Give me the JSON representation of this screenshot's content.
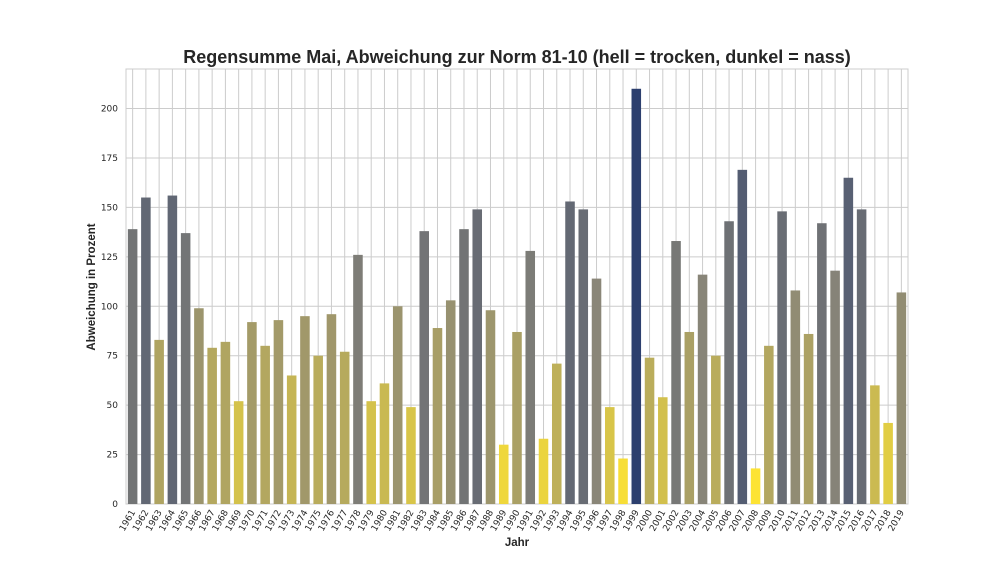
{
  "chart_data": {
    "type": "bar",
    "title": "Regensumme Mai, Abweichung zur Norm 81-10 (hell = trocken, dunkel = nass)",
    "xlabel": "Jahr",
    "ylabel": "Abweichung in Prozent",
    "ylim": [
      0,
      220
    ],
    "yticks": [
      0,
      25,
      50,
      75,
      100,
      125,
      150,
      175,
      200
    ],
    "grid": true,
    "color_scale": {
      "low": "#fde333",
      "mid": "#8a8678",
      "high": "#2c3f6e",
      "min_value": 18,
      "max_value": 210
    },
    "categories": [
      "1961",
      "1962",
      "1963",
      "1964",
      "1965",
      "1966",
      "1967",
      "1968",
      "1969",
      "1970",
      "1971",
      "1972",
      "1973",
      "1974",
      "1975",
      "1976",
      "1977",
      "1978",
      "1979",
      "1980",
      "1981",
      "1982",
      "1983",
      "1984",
      "1985",
      "1986",
      "1987",
      "1988",
      "1989",
      "1990",
      "1991",
      "1992",
      "1993",
      "1994",
      "1995",
      "1996",
      "1997",
      "1998",
      "1999",
      "2000",
      "2001",
      "2002",
      "2003",
      "2004",
      "2005",
      "2006",
      "2007",
      "2008",
      "2009",
      "2010",
      "2011",
      "2012",
      "2013",
      "2014",
      "2015",
      "2016",
      "2017",
      "2018",
      "2019"
    ],
    "values": [
      139,
      155,
      83,
      156,
      137,
      99,
      79,
      82,
      52,
      92,
      80,
      93,
      65,
      95,
      75,
      96,
      77,
      126,
      52,
      61,
      100,
      49,
      138,
      89,
      103,
      139,
      149,
      98,
      30,
      87,
      128,
      33,
      71,
      153,
      149,
      114,
      49,
      23,
      210,
      74,
      54,
      133,
      87,
      116,
      75,
      143,
      169,
      18,
      80,
      148,
      108,
      86,
      142,
      118,
      165,
      149,
      60,
      41,
      107
    ]
  }
}
